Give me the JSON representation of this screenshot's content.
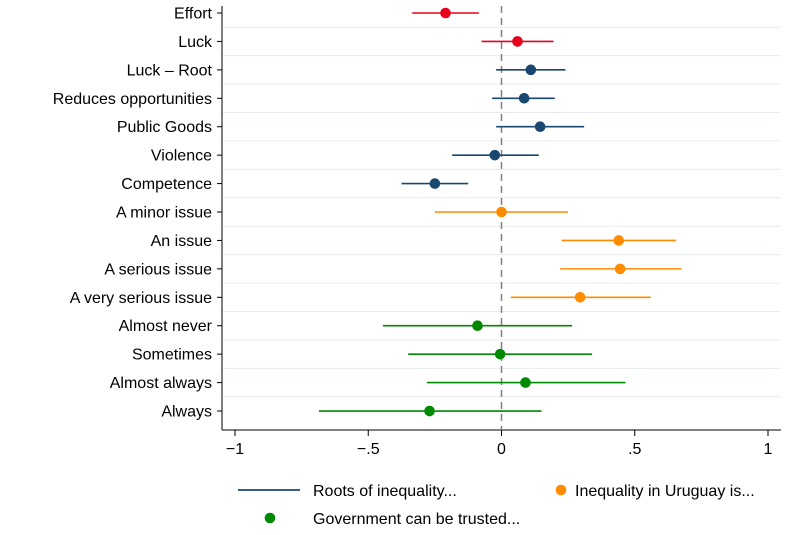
{
  "chart_data": {
    "type": "scatter",
    "subtype": "coefficient-plot",
    "xlim": [
      -1,
      1
    ],
    "xticks": [
      {
        "value": -1,
        "label": "−1"
      },
      {
        "value": -0.5,
        "label": "−.5"
      },
      {
        "value": 0,
        "label": "0"
      },
      {
        "value": 0.5,
        "label": ".5"
      },
      {
        "value": 1,
        "label": "1"
      }
    ],
    "reference_line_x": 0,
    "grid": true,
    "colors": {
      "red": "#e8001c",
      "navy": "#1a476f",
      "orange": "#ff8c00",
      "green": "#008a00",
      "refline": "#808080",
      "grid": "#e6ecef"
    },
    "rows": [
      {
        "label": "Effort",
        "estimate": -0.21,
        "ci": [
          -0.335,
          -0.085
        ],
        "color": "red"
      },
      {
        "label": "Luck",
        "estimate": 0.06,
        "ci": [
          -0.075,
          0.195
        ],
        "color": "red"
      },
      {
        "label": "Luck – Root",
        "estimate": 0.11,
        "ci": [
          -0.02,
          0.24
        ],
        "color": "navy"
      },
      {
        "label": "Reduces opportunities",
        "estimate": 0.085,
        "ci": [
          -0.035,
          0.2
        ],
        "color": "navy"
      },
      {
        "label": "Public Goods",
        "estimate": 0.145,
        "ci": [
          -0.02,
          0.31
        ],
        "color": "navy"
      },
      {
        "label": "Violence",
        "estimate": -0.025,
        "ci": [
          -0.185,
          0.14
        ],
        "color": "navy"
      },
      {
        "label": "Competence",
        "estimate": -0.25,
        "ci": [
          -0.375,
          -0.125
        ],
        "color": "navy"
      },
      {
        "label": "A minor issue",
        "estimate": 0.0,
        "ci": [
          -0.25,
          0.25
        ],
        "color": "orange"
      },
      {
        "label": "An issue",
        "estimate": 0.44,
        "ci": [
          0.225,
          0.655
        ],
        "color": "orange"
      },
      {
        "label": "A serious issue",
        "estimate": 0.445,
        "ci": [
          0.22,
          0.675
        ],
        "color": "orange"
      },
      {
        "label": "A very serious issue",
        "estimate": 0.295,
        "ci": [
          0.035,
          0.56
        ],
        "color": "orange"
      },
      {
        "label": "Almost never",
        "estimate": -0.09,
        "ci": [
          -0.445,
          0.265
        ],
        "color": "green"
      },
      {
        "label": "Sometimes",
        "estimate": -0.005,
        "ci": [
          -0.35,
          0.34
        ],
        "color": "green"
      },
      {
        "label": "Almost always",
        "estimate": 0.09,
        "ci": [
          -0.28,
          0.465
        ],
        "color": "green"
      },
      {
        "label": "Always",
        "estimate": -0.27,
        "ci": [
          -0.685,
          0.15
        ],
        "color": "green"
      }
    ],
    "legend": [
      {
        "label": "Roots of inequality...",
        "marker": "line",
        "color": "navy"
      },
      {
        "label": "Inequality in Uruguay is...",
        "marker": "dot",
        "color": "orange"
      },
      {
        "label": "Government can be trusted...",
        "marker": "dot",
        "color": "green"
      }
    ],
    "legend_position": "bottom"
  }
}
